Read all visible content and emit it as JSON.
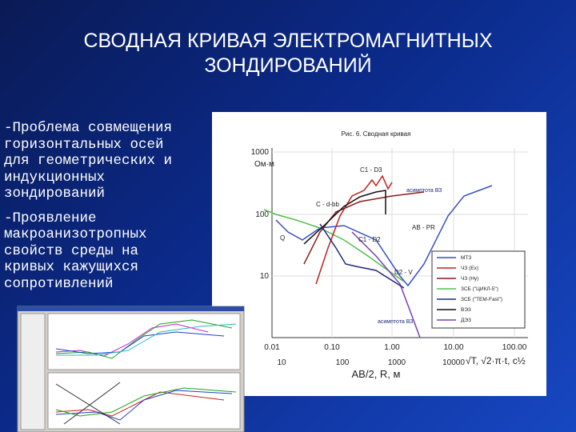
{
  "header": {
    "title": "СВОДНАЯ КРИВАЯ ЭЛЕКТРОМАГНИТНЫХ ЗОНДИРОВАНИЙ"
  },
  "bullets": [
    "-Проблема совмещения горизонтальных осей для геометрических и индукционных зондирований",
    "-Проявление макроанизотропных свойств среды на кривых кажущихся сопротивлений"
  ],
  "figure": {
    "caption": "Рис. 6. Сводная кривая",
    "y_unit": "Ом·м",
    "y_ticks": [
      "1000",
      "100",
      "10"
    ],
    "x_ticks_top": [
      "0.01",
      "0.10",
      "1.00",
      "10.00",
      "100.00"
    ],
    "x_ticks_bottom": [
      "10",
      "100",
      "1000",
      "10000"
    ],
    "x_label_bottom": "AB/2, R, м",
    "x_label_right": "√T, √2·π·t, c½",
    "annotations": [
      "C1 - D3",
      "асимптота ВЗ",
      "C - d-bb",
      "Q",
      "AB - PR",
      "C1 - D2",
      "D2 - V",
      "асимптота ВЗ"
    ],
    "legend": [
      "МТЗ",
      "ЧЗ (Ex)",
      "ЧЗ (Hy)",
      "ЗСБ (\"ЦИКЛ-5\")",
      "ЗСБ (\"TEM-Fast\")",
      "ВЭЗ",
      "ДЭЗ"
    ]
  }
}
